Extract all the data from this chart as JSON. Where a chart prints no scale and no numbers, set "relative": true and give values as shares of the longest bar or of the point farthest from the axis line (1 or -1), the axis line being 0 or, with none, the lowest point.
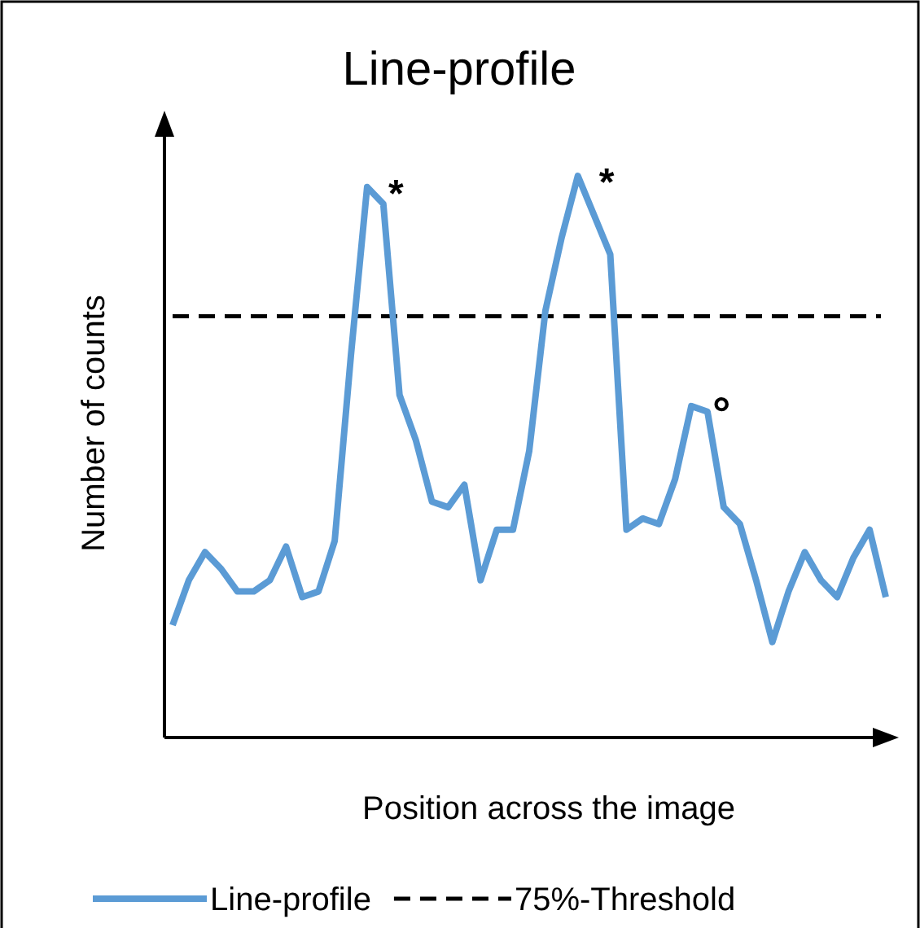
{
  "chart_data": {
    "type": "line",
    "title": "Line-profile",
    "xlabel": "Position across the image",
    "ylabel": "Number of counts",
    "relative": true,
    "legend": "bottom",
    "line_style": "solid",
    "categories": [
      null,
      null,
      null,
      null,
      null,
      null,
      null,
      null,
      null,
      null,
      null,
      null,
      null,
      null,
      null,
      null,
      null,
      null,
      null,
      null,
      null,
      null,
      null,
      null,
      null,
      null,
      null,
      null,
      null,
      null,
      null,
      null,
      null,
      null,
      null,
      null,
      null,
      null,
      null,
      null,
      null,
      null,
      null,
      null,
      null
    ],
    "series": [
      {
        "name": "Line-profile",
        "color": "#5b9bd5",
        "values": [
          0.2,
          0.28,
          0.33,
          0.3,
          0.26,
          0.26,
          0.28,
          0.34,
          0.25,
          0.26,
          0.35,
          0.68,
          0.98,
          0.95,
          0.61,
          0.53,
          0.42,
          0.41,
          0.45,
          0.28,
          0.37,
          0.37,
          0.51,
          0.76,
          0.89,
          1.0,
          0.93,
          0.86,
          0.37,
          0.39,
          0.38,
          0.46,
          0.59,
          0.58,
          0.41,
          0.38,
          0.28,
          0.17,
          0.26,
          0.33,
          0.28,
          0.25,
          0.32,
          0.37,
          0.25
        ]
      }
    ],
    "ref_lines": [
      {
        "axis": "y",
        "value": 0.75,
        "label": "75%-Threshold",
        "color": "#000000",
        "line_style": "dashed"
      }
    ],
    "annotations": [
      "*",
      "*",
      "°"
    ]
  }
}
